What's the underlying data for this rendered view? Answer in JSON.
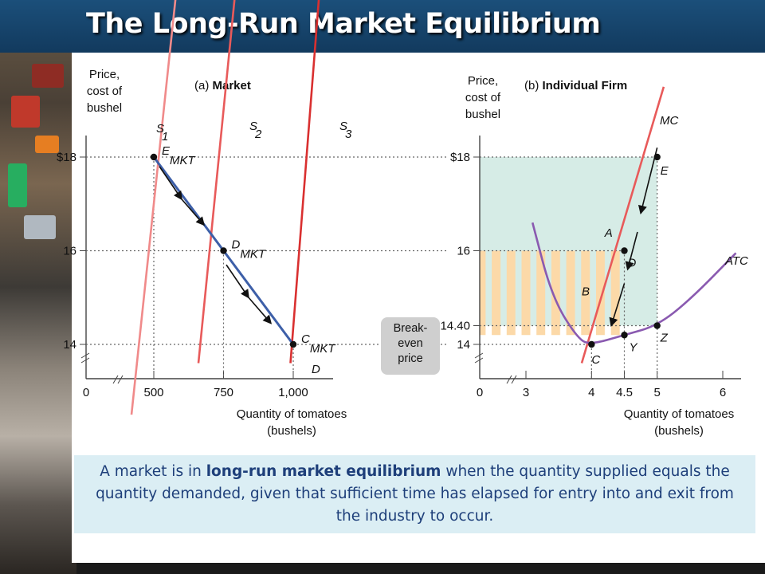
{
  "title": "The Long-Run Market Equilibrium",
  "caption": {
    "pre": "A market is in ",
    "bold": "long-run market equilibrium",
    "post": " when the quantity supplied equals the quantity demanded, given that sufficient time has elapsed for entry into and exit from the industry to occur."
  },
  "break_even_label": [
    "Break-",
    "even",
    "price"
  ],
  "chart_data": [
    {
      "type": "line",
      "panel_prefix": "(a)",
      "panel_title": "Market",
      "ylabel": [
        "Price,",
        "cost of",
        "bushel"
      ],
      "xlabel": [
        "Quantity of tomatoes",
        "(bushels)"
      ],
      "x_ticks": [
        "0",
        "500",
        "750",
        "1,000"
      ],
      "y_ticks": [
        "$18",
        "16",
        "14"
      ],
      "axis_breaks": true,
      "series": [
        {
          "name": "S1",
          "label_main": "S",
          "label_sub": "1",
          "color": "#f08a8a",
          "points": [
            [
              420,
              12.5
            ],
            [
              580,
              21.5
            ]
          ]
        },
        {
          "name": "S2",
          "label_main": "S",
          "label_sub": "2",
          "color": "#e85a5a",
          "points": [
            [
              660,
              13.6
            ],
            [
              800,
              22
            ]
          ]
        },
        {
          "name": "S3",
          "label_main": "S",
          "label_sub": "3",
          "color": "#d93030",
          "points": [
            [
              990,
              13.6
            ],
            [
              1100,
              22
            ]
          ]
        },
        {
          "name": "DMKT",
          "label_main": "D",
          "label_sub": "MKT",
          "color": "#3d5fa8",
          "points": [
            [
              500,
              18
            ],
            [
              1000,
              14
            ]
          ]
        }
      ],
      "points": [
        {
          "label": "E",
          "sub": "MKT",
          "x": 500,
          "y": 18
        },
        {
          "label": "D",
          "sub": "MKT",
          "x": 750,
          "y": 16
        },
        {
          "label": "C",
          "sub": "MKT",
          "x": 1000,
          "y": 14
        }
      ],
      "arrows": [
        [
          [
            520,
            17.8
          ],
          [
            600,
            17.1
          ]
        ],
        [
          [
            600,
            17.1
          ],
          [
            680,
            16.55
          ]
        ],
        [
          [
            760,
            15.7
          ],
          [
            840,
            15.0
          ]
        ],
        [
          [
            840,
            15.0
          ],
          [
            920,
            14.45
          ]
        ]
      ]
    },
    {
      "type": "line",
      "panel_prefix": "(b)",
      "panel_title": "Individual Firm",
      "ylabel": [
        "Price,",
        "cost of",
        "bushel"
      ],
      "xlabel": [
        "Quantity of tomatoes",
        "(bushels)"
      ],
      "x_ticks": [
        "0",
        "3",
        "4",
        "4.5",
        "5",
        "6"
      ],
      "y_ticks": [
        "$18",
        "16",
        "14.40",
        "14"
      ],
      "axis_breaks": true,
      "series": [
        {
          "name": "MC",
          "color": "#e85a5a",
          "points": [
            [
              3.85,
              13.6
            ],
            [
              5.1,
              19.5
            ]
          ]
        },
        {
          "name": "ATC",
          "color": "#8a5ab0",
          "points": [
            [
              3.1,
              16.6
            ],
            [
              3.4,
              15.0
            ],
            [
              3.8,
              14.1
            ],
            [
              4.0,
              14.0
            ],
            [
              4.5,
              14.2
            ],
            [
              5.0,
              14.4
            ],
            [
              5.5,
              14.95
            ],
            [
              6.2,
              15.95
            ]
          ]
        }
      ],
      "points": [
        {
          "label": "E",
          "x": 5,
          "y": 18
        },
        {
          "label": "D",
          "x": 4.5,
          "y": 16
        },
        {
          "label": "Z",
          "x": 5,
          "y": 14.4
        },
        {
          "label": "Y",
          "x": 4.5,
          "y": 14.2
        },
        {
          "label": "C",
          "x": 4,
          "y": 14
        }
      ],
      "region_labels": [
        {
          "label": "A",
          "x": 4.2,
          "y": 16.3
        },
        {
          "label": "B",
          "x": 3.85,
          "y": 15.05
        }
      ],
      "shaded_regions": [
        {
          "name": "profit-at-18",
          "x": [
            0,
            5
          ],
          "y": [
            14.4,
            18
          ],
          "color": "#d6ece6"
        },
        {
          "name": "profit-at-16",
          "x": [
            0,
            4.5
          ],
          "y": [
            14.2,
            16
          ],
          "pattern": "stripes",
          "color": "#fcd9a8"
        }
      ],
      "arrows": [
        [
          [
            5.0,
            18.2
          ],
          [
            4.75,
            16.8
          ]
        ],
        [
          [
            4.7,
            16.4
          ],
          [
            4.55,
            15.6
          ]
        ],
        [
          [
            4.5,
            15.3
          ],
          [
            4.3,
            14.4
          ]
        ]
      ]
    }
  ]
}
